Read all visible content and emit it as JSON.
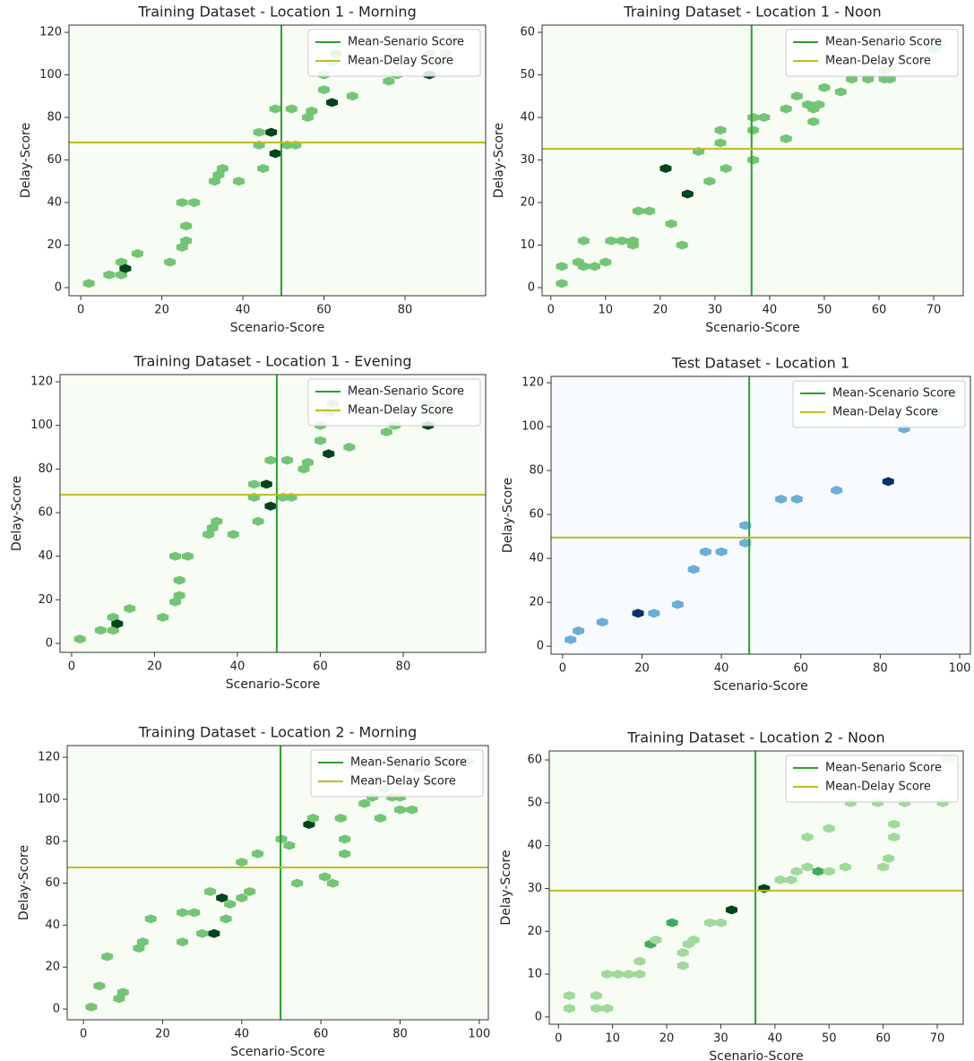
{
  "chart_data": [
    {
      "type": "hexbin",
      "title": "Training Dataset - Location 1 - Morning",
      "xlabel": "Scenario-Score",
      "ylabel": "Delay-Score",
      "xlim": [
        -2.9,
        99.9
      ],
      "ylim": [
        -3.8,
        123.4
      ],
      "xticks": [
        0,
        20,
        40,
        60,
        80
      ],
      "yticks": [
        0,
        20,
        40,
        60,
        80,
        100,
        120
      ],
      "colormap": [
        "#f7fcf5",
        "#74c476",
        "#238b45",
        "#00441b"
      ],
      "legend": "upper right",
      "x": [
        2,
        7,
        10,
        10,
        11,
        14,
        22,
        25,
        26,
        26,
        25,
        28,
        33,
        34,
        35,
        39,
        44,
        44,
        45,
        47,
        48,
        48,
        51,
        52,
        53,
        56,
        57,
        60,
        60,
        62,
        62,
        67,
        76,
        78,
        86,
        86,
        88,
        92,
        63,
        90
      ],
      "y": [
        2,
        6,
        6,
        12,
        9,
        16,
        12,
        19,
        22,
        29,
        40,
        40,
        50,
        53,
        56,
        50,
        73,
        67,
        56,
        73,
        63,
        84,
        67,
        84,
        67,
        80,
        83,
        93,
        100,
        87,
        106,
        90,
        97,
        100,
        100,
        110,
        106,
        117,
        110,
        110
      ],
      "counts": [
        1,
        1,
        1,
        1,
        3,
        1,
        1,
        1,
        1,
        1,
        1,
        1,
        1,
        1,
        1,
        1,
        1,
        1,
        1,
        3,
        3,
        1,
        1,
        1,
        1,
        1,
        1,
        1,
        1,
        3,
        1,
        1,
        1,
        1,
        3,
        1,
        1,
        1,
        1,
        1
      ],
      "mean_lines": [
        {
          "name": "Mean-Senario Score",
          "color": "#2ca02c",
          "axis": "x",
          "value": 49.5
        },
        {
          "name": "Mean-Delay Score",
          "color": "#bcbd22",
          "axis": "y",
          "value": 68.2
        }
      ]
    },
    {
      "type": "hexbin",
      "title": "Training Dataset - Location 1 - Noon",
      "xlabel": "Scenario-Score",
      "ylabel": "Delay-Score",
      "xlim": [
        -1.6,
        75.4
      ],
      "ylim": [
        -1.9,
        61.7
      ],
      "xticks": [
        0,
        10,
        20,
        30,
        40,
        50,
        60,
        70
      ],
      "yticks": [
        0,
        10,
        20,
        30,
        40,
        50,
        60
      ],
      "colormap": [
        "#f7fcf5",
        "#74c476",
        "#238b45",
        "#00441b"
      ],
      "legend": "upper right",
      "x": [
        2,
        2,
        5,
        6,
        6,
        8,
        10,
        11,
        13,
        15,
        15,
        16,
        18,
        21,
        22,
        24,
        25,
        27,
        29,
        31,
        31,
        32,
        37,
        37,
        37,
        39,
        43,
        43,
        45,
        47,
        48,
        48,
        49,
        50,
        53,
        55,
        58,
        61,
        61,
        62,
        71,
        70
      ],
      "y": [
        1,
        5,
        6,
        5,
        11,
        5,
        6,
        11,
        11,
        10,
        11,
        18,
        18,
        28,
        15,
        10,
        22,
        32,
        25,
        37,
        34,
        28,
        30,
        37,
        40,
        40,
        42,
        35,
        45,
        43,
        39,
        42,
        43,
        47,
        46,
        49,
        49,
        49,
        51,
        49,
        57,
        56
      ],
      "counts": [
        1,
        1,
        1,
        1,
        1,
        1,
        1,
        1,
        1,
        1,
        1,
        1,
        1,
        3,
        1,
        1,
        3,
        1,
        1,
        1,
        1,
        1,
        1,
        1,
        1,
        1,
        1,
        1,
        1,
        1,
        1,
        1,
        1,
        1,
        1,
        1,
        1,
        1,
        1,
        1,
        1,
        1
      ],
      "mean_lines": [
        {
          "name": "Mean-Senario Score",
          "color": "#2ca02c",
          "axis": "x",
          "value": 36.7
        },
        {
          "name": "Mean-Delay Score",
          "color": "#bcbd22",
          "axis": "y",
          "value": 32.6
        }
      ]
    },
    {
      "type": "hexbin",
      "title": "Training Dataset - Location 1 - Evening",
      "xlabel": "Scenario-Score",
      "ylabel": "Delay-Score",
      "xlim": [
        -2.8,
        99.9
      ],
      "ylim": [
        -4.1,
        123.3
      ],
      "xticks": [
        0,
        20,
        40,
        60,
        80
      ],
      "yticks": [
        0,
        20,
        40,
        60,
        80,
        100,
        120
      ],
      "colormap": [
        "#f7fcf5",
        "#74c476",
        "#238b45",
        "#00441b"
      ],
      "legend": "upper right",
      "x": [
        2,
        7,
        10,
        10,
        11,
        14,
        22,
        25,
        26,
        26,
        25,
        28,
        33,
        34,
        35,
        39,
        44,
        44,
        45,
        47,
        48,
        48,
        51,
        52,
        53,
        56,
        57,
        60,
        60,
        62,
        62,
        67,
        76,
        78,
        86,
        86,
        88,
        92,
        63,
        90
      ],
      "y": [
        2,
        6,
        6,
        12,
        9,
        16,
        12,
        19,
        22,
        29,
        40,
        40,
        50,
        53,
        56,
        50,
        73,
        67,
        56,
        73,
        63,
        84,
        67,
        84,
        67,
        80,
        83,
        93,
        100,
        87,
        106,
        90,
        97,
        100,
        100,
        110,
        106,
        117,
        110,
        110
      ],
      "counts": [
        1,
        1,
        1,
        1,
        3,
        1,
        1,
        1,
        1,
        1,
        1,
        1,
        1,
        1,
        1,
        1,
        1,
        1,
        1,
        3,
        3,
        1,
        1,
        1,
        1,
        1,
        1,
        1,
        1,
        3,
        1,
        1,
        1,
        1,
        3,
        1,
        1,
        1,
        1,
        1
      ],
      "mean_lines": [
        {
          "name": "Mean-Senario Score",
          "color": "#2ca02c",
          "axis": "x",
          "value": 49.5
        },
        {
          "name": "Mean-Delay Score",
          "color": "#bcbd22",
          "axis": "y",
          "value": 68.2
        }
      ]
    },
    {
      "type": "hexbin",
      "title": "Test Dataset - Location 1",
      "xlabel": "Scenario-Score",
      "ylabel": "Delay-Score",
      "xlim": [
        -2.9,
        102.7
      ],
      "ylim": [
        -3.6,
        122.9
      ],
      "xticks": [
        0,
        20,
        40,
        60,
        80,
        100
      ],
      "yticks": [
        0,
        20,
        40,
        60,
        80,
        100,
        120
      ],
      "colormap": [
        "#f7fbff",
        "#6baed6",
        "#2171b5",
        "#08306b"
      ],
      "legend": "upper right",
      "x": [
        2,
        4,
        10,
        19,
        23,
        29,
        33,
        36,
        40,
        46,
        46,
        55,
        59,
        69,
        82,
        86,
        94,
        98
      ],
      "y": [
        3,
        7,
        11,
        15,
        15,
        19,
        35,
        43,
        43,
        47,
        55,
        67,
        67,
        71,
        75,
        99,
        107,
        115
      ],
      "counts": [
        1,
        1,
        1,
        3,
        1,
        1,
        1,
        1,
        1,
        1,
        1,
        1,
        1,
        1,
        3,
        1,
        1,
        1
      ],
      "mean_lines": [
        {
          "name": "Mean-Scenario Score",
          "color": "#2ca02c",
          "axis": "x",
          "value": 47
        },
        {
          "name": "Mean-Delay Score",
          "color": "#bcbd22",
          "axis": "y",
          "value": 49.5
        }
      ]
    },
    {
      "type": "hexbin",
      "title": "Training Dataset - Location 2 - Morning",
      "xlabel": "Scenario-Score",
      "ylabel": "Delay-Score",
      "xlim": [
        -4.1,
        102.3
      ],
      "ylim": [
        -5.1,
        125.6
      ],
      "xticks": [
        0,
        20,
        40,
        60,
        80,
        100
      ],
      "yticks": [
        0,
        20,
        40,
        60,
        80,
        100,
        120
      ],
      "colormap": [
        "#f7fcf5",
        "#74c476",
        "#238b45",
        "#00441b"
      ],
      "legend": "upper right",
      "x": [
        2,
        4,
        6,
        9,
        10,
        14,
        15,
        17,
        25,
        25,
        28,
        30,
        32,
        33,
        35,
        36,
        37,
        40,
        40,
        42,
        44,
        50,
        52,
        54,
        57,
        58,
        61,
        63,
        65,
        66,
        66,
        71,
        73,
        75,
        76,
        78,
        80,
        80,
        83,
        85,
        88,
        92,
        97
      ],
      "y": [
        1,
        11,
        25,
        5,
        8,
        29,
        32,
        43,
        32,
        46,
        46,
        36,
        56,
        36,
        53,
        43,
        50,
        70,
        53,
        56,
        74,
        81,
        78,
        60,
        88,
        91,
        63,
        60,
        91,
        81,
        74,
        98,
        101,
        91,
        105,
        101,
        101,
        95,
        95,
        115,
        108,
        118,
        118
      ],
      "counts": [
        1,
        1,
        1,
        1,
        1,
        1,
        1,
        1,
        1,
        1,
        1,
        1,
        1,
        3,
        3,
        1,
        1,
        1,
        1,
        1,
        1,
        1,
        1,
        1,
        3,
        1,
        1,
        1,
        1,
        1,
        1,
        1,
        1,
        1,
        1,
        1,
        1,
        1,
        1,
        1,
        1,
        1,
        1
      ],
      "mean_lines": [
        {
          "name": "Mean-Senario Score",
          "color": "#2ca02c",
          "axis": "x",
          "value": 49.8
        },
        {
          "name": "Mean-Delay Score",
          "color": "#bcbd22",
          "axis": "y",
          "value": 67.5
        }
      ]
    },
    {
      "type": "hexbin",
      "title": "Training Dataset - Location 2 - Noon",
      "xlabel": "Scenario-Score",
      "ylabel": "Delay-Score",
      "xlim": [
        -1.7,
        74.8
      ],
      "ylim": [
        -1.7,
        62.1
      ],
      "xticks": [
        0,
        10,
        20,
        30,
        40,
        50,
        60,
        70
      ],
      "yticks": [
        0,
        10,
        20,
        30,
        40,
        50,
        60
      ],
      "colormap": [
        "#f7fcf5",
        "#a1d99b",
        "#41ab5d",
        "#00441b"
      ],
      "legend": "upper right",
      "x": [
        2,
        2,
        7,
        7,
        9,
        9,
        11,
        13,
        15,
        15,
        17,
        18,
        21,
        23,
        23,
        24,
        25,
        28,
        30,
        32,
        38,
        41,
        43,
        44,
        46,
        46,
        48,
        50,
        50,
        53,
        54,
        59,
        60,
        61,
        62,
        62,
        64,
        69,
        71,
        72
      ],
      "y": [
        2,
        5,
        2,
        5,
        2,
        10,
        10,
        10,
        10,
        13,
        17,
        18,
        22,
        12,
        15,
        17,
        18,
        22,
        22,
        25,
        30,
        32,
        32,
        34,
        35,
        42,
        34,
        34,
        44,
        35,
        50,
        50,
        35,
        37,
        42,
        45,
        50,
        57,
        50,
        60
      ],
      "counts": [
        1,
        1,
        1,
        1,
        1,
        1,
        1,
        1,
        1,
        1,
        2,
        1,
        2,
        1,
        1,
        1,
        1,
        1,
        1,
        3,
        3,
        1,
        1,
        1,
        1,
        1,
        2,
        1,
        1,
        1,
        1,
        1,
        1,
        1,
        1,
        1,
        1,
        1,
        1,
        1
      ],
      "mean_lines": [
        {
          "name": "Mean-Senario Score",
          "color": "#2ca02c",
          "axis": "x",
          "value": 36.4
        },
        {
          "name": "Mean-Delay Score",
          "color": "#bcbd22",
          "axis": "y",
          "value": 29.5
        }
      ]
    }
  ]
}
